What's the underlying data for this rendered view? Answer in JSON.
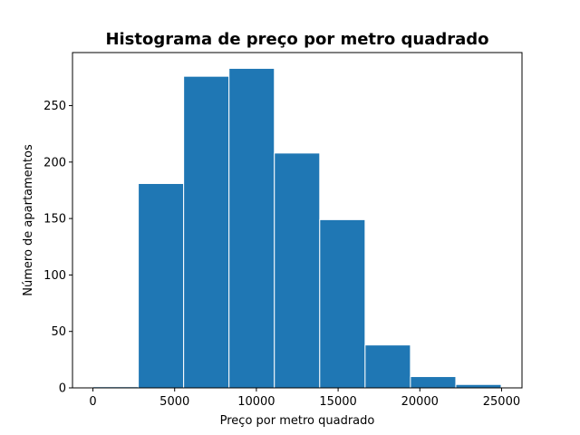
{
  "chart_data": {
    "type": "bar",
    "title": "Histograma de preço por metro quadrado",
    "xlabel": "Preço por metro quadrado",
    "ylabel": "Número de apartamentos",
    "bin_edges": [
      0,
      2775,
      5550,
      8325,
      11100,
      13875,
      16650,
      19425,
      22200,
      24975
    ],
    "values": [
      1,
      181,
      276,
      283,
      208,
      149,
      38,
      10,
      3
    ],
    "xlim": [
      -1250,
      26250
    ],
    "ylim": [
      0,
      297
    ],
    "xticks": [
      0,
      5000,
      10000,
      15000,
      20000,
      25000
    ],
    "yticks": [
      0,
      50,
      100,
      150,
      200,
      250
    ],
    "bar_color": "#1f77b4",
    "bar_edge_color": "#ffffff",
    "grid": false,
    "legend": "none"
  }
}
